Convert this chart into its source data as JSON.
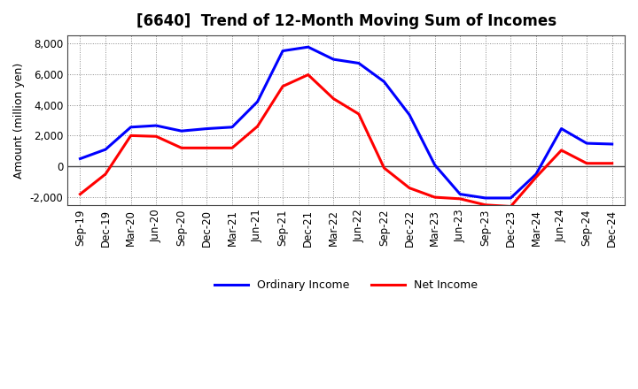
{
  "title": "[6640]  Trend of 12-Month Moving Sum of Incomes",
  "ylabel": "Amount (million yen)",
  "xlabels": [
    "Sep-19",
    "Dec-19",
    "Mar-20",
    "Jun-20",
    "Sep-20",
    "Dec-20",
    "Mar-21",
    "Jun-21",
    "Sep-21",
    "Dec-21",
    "Mar-22",
    "Jun-22",
    "Sep-22",
    "Dec-22",
    "Mar-23",
    "Jun-23",
    "Sep-23",
    "Dec-23",
    "Mar-24",
    "Jun-24",
    "Sep-24",
    "Dec-24"
  ],
  "ordinary_income": [
    500,
    1100,
    2550,
    2650,
    2300,
    2450,
    2550,
    4200,
    7500,
    7750,
    6950,
    6700,
    5500,
    3350,
    100,
    -1800,
    -2050,
    -2050,
    -500,
    2450,
    1500,
    1450
  ],
  "net_income": [
    -1800,
    -500,
    2000,
    1950,
    1200,
    1200,
    1200,
    2600,
    5200,
    5950,
    4400,
    3400,
    -100,
    -1400,
    -2000,
    -2100,
    -2500,
    -2600,
    -700,
    1050,
    200,
    200
  ],
  "ordinary_color": "#0000ff",
  "net_color": "#ff0000",
  "ylim": [
    -2500,
    8500
  ],
  "yticks": [
    -2000,
    0,
    2000,
    4000,
    6000,
    8000
  ],
  "grid_color": "#888888",
  "background_color": "#ffffff",
  "line_width": 2.2,
  "legend_ordinary": "Ordinary Income",
  "legend_net": "Net Income",
  "title_fontsize": 12,
  "axis_fontsize": 8.5,
  "label_fontsize": 9
}
